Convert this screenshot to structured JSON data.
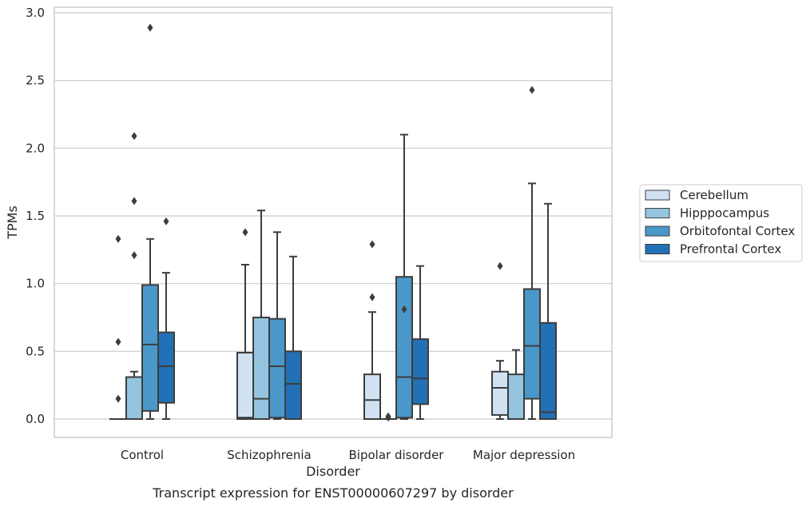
{
  "chart_data": {
    "type": "box",
    "caption": "Transcript expression for ENST00000607297 by disorder",
    "xlabel": "Disorder",
    "ylabel": "TPMs",
    "ylim": [
      -0.14,
      3.05
    ],
    "yticks": [
      0.0,
      0.5,
      1.0,
      1.5,
      2.0,
      2.5,
      3.0
    ],
    "ytick_labels": [
      "0.0",
      "0.5",
      "1.0",
      "1.5",
      "2.0",
      "2.5",
      "3.0"
    ],
    "grid": "horizontal",
    "legend_position": "right",
    "categories": [
      "Control",
      "Schizophrenia",
      "Bipolar disorder",
      "Major depression"
    ],
    "series": [
      {
        "name": "Cerebellum",
        "color": "#d0e1f2",
        "boxes": [
          {
            "whislo": 0.0,
            "q1": 0.0,
            "med": 0.0,
            "q3": 0.0,
            "whishi": 0.0,
            "fliers": [
              0.15,
              0.57,
              1.33
            ]
          },
          {
            "whislo": 0.0,
            "q1": 0.0,
            "med": 0.01,
            "q3": 0.49,
            "whishi": 1.14,
            "fliers": [
              1.38
            ]
          },
          {
            "whislo": 0.0,
            "q1": 0.0,
            "med": 0.14,
            "q3": 0.33,
            "whishi": 0.79,
            "fliers": [
              0.9,
              1.29
            ]
          },
          {
            "whislo": 0.0,
            "q1": 0.03,
            "med": 0.23,
            "q3": 0.35,
            "whishi": 0.43,
            "fliers": [
              1.13
            ]
          }
        ]
      },
      {
        "name": "Hipppocampus",
        "color": "#94c4df",
        "boxes": [
          {
            "whislo": 0.0,
            "q1": 0.0,
            "med": 0.0,
            "q3": 0.31,
            "whishi": 0.35,
            "fliers": [
              1.21,
              1.61,
              2.09
            ]
          },
          {
            "whislo": 0.0,
            "q1": 0.0,
            "med": 0.15,
            "q3": 0.75,
            "whishi": 1.54,
            "fliers": []
          },
          {
            "whislo": 0.0,
            "q1": 0.0,
            "med": 0.0,
            "q3": 0.0,
            "whishi": 0.0,
            "fliers": [
              0.02,
              0.01
            ]
          },
          {
            "whislo": 0.0,
            "q1": 0.0,
            "med": 0.0,
            "q3": 0.33,
            "whishi": 0.51,
            "fliers": []
          }
        ]
      },
      {
        "name": "Orbitofontal Cortex",
        "color": "#4a98c9",
        "boxes": [
          {
            "whislo": 0.0,
            "q1": 0.06,
            "med": 0.55,
            "q3": 0.99,
            "whishi": 1.33,
            "fliers": [
              2.89
            ]
          },
          {
            "whislo": 0.0,
            "q1": 0.01,
            "med": 0.39,
            "q3": 0.74,
            "whishi": 1.38,
            "fliers": []
          },
          {
            "whislo": 0.0,
            "q1": 0.01,
            "med": 0.31,
            "q3": 1.05,
            "whishi": 2.1,
            "fliers": [
              0.81
            ]
          },
          {
            "whislo": 0.0,
            "q1": 0.15,
            "med": 0.54,
            "q3": 0.96,
            "whishi": 1.74,
            "fliers": [
              2.43
            ]
          }
        ]
      },
      {
        "name": "Prefrontal Cortex",
        "color": "#2270b5",
        "boxes": [
          {
            "whislo": 0.0,
            "q1": 0.12,
            "med": 0.39,
            "q3": 0.64,
            "whishi": 1.08,
            "fliers": [
              1.46
            ]
          },
          {
            "whislo": 0.0,
            "q1": 0.0,
            "med": 0.26,
            "q3": 0.5,
            "whishi": 1.2,
            "fliers": []
          },
          {
            "whislo": 0.0,
            "q1": 0.11,
            "med": 0.3,
            "q3": 0.59,
            "whishi": 1.13,
            "fliers": []
          },
          {
            "whislo": 0.0,
            "q1": 0.0,
            "med": 0.05,
            "q3": 0.71,
            "whishi": 1.59,
            "fliers": []
          }
        ]
      }
    ]
  }
}
